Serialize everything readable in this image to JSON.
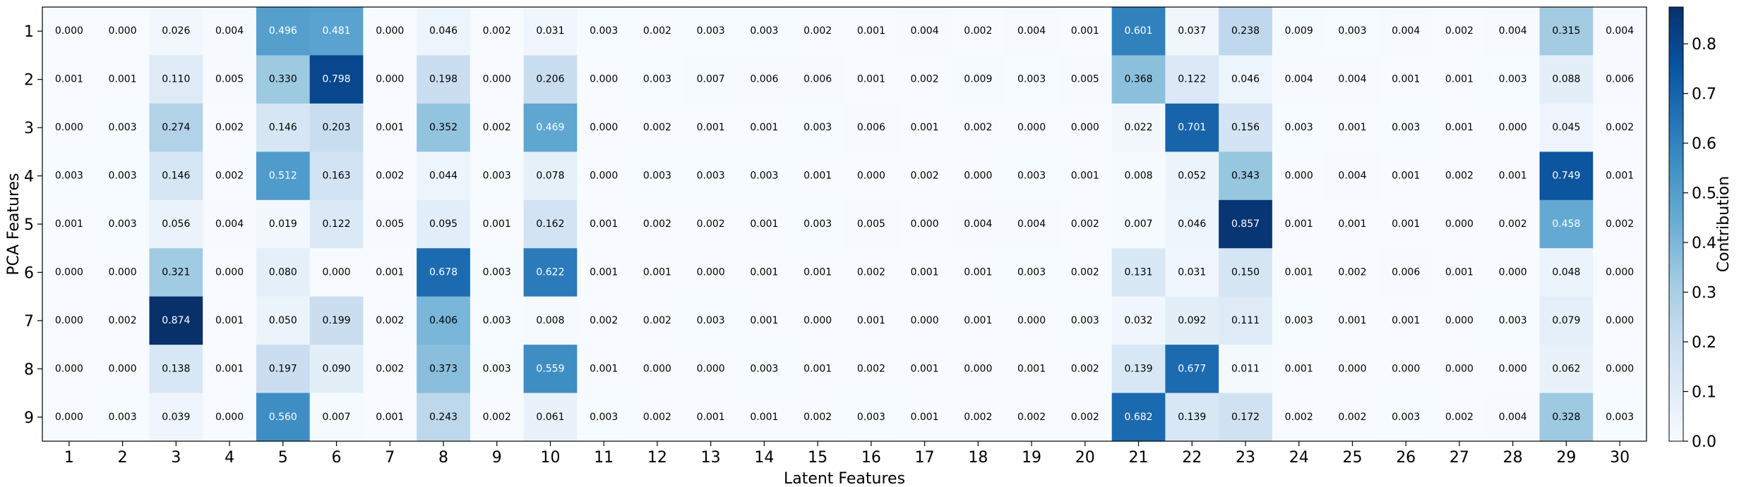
{
  "chart_data": {
    "type": "heatmap",
    "title": "",
    "xlabel": "Latent Features",
    "ylabel": "PCA Features",
    "x_categories": [
      "1",
      "2",
      "3",
      "4",
      "5",
      "6",
      "7",
      "8",
      "9",
      "10",
      "11",
      "12",
      "13",
      "14",
      "15",
      "16",
      "17",
      "18",
      "19",
      "20",
      "21",
      "22",
      "23",
      "24",
      "25",
      "26",
      "27",
      "28",
      "29",
      "30"
    ],
    "y_categories": [
      "1",
      "2",
      "3",
      "4",
      "5",
      "6",
      "7",
      "8",
      "9"
    ],
    "values": [
      [
        0.0,
        0.0,
        0.026,
        0.004,
        0.496,
        0.481,
        0.0,
        0.046,
        0.002,
        0.031,
        0.003,
        0.002,
        0.003,
        0.003,
        0.002,
        0.001,
        0.004,
        0.002,
        0.004,
        0.001,
        0.601,
        0.037,
        0.238,
        0.009,
        0.003,
        0.004,
        0.002,
        0.004,
        0.315,
        0.004
      ],
      [
        0.001,
        0.001,
        0.11,
        0.005,
        0.33,
        0.798,
        0.0,
        0.198,
        0.0,
        0.206,
        0.0,
        0.003,
        0.007,
        0.006,
        0.006,
        0.001,
        0.002,
        0.009,
        0.003,
        0.005,
        0.368,
        0.122,
        0.046,
        0.004,
        0.004,
        0.001,
        0.001,
        0.003,
        0.088,
        0.006
      ],
      [
        0.0,
        0.003,
        0.274,
        0.002,
        0.146,
        0.203,
        0.001,
        0.352,
        0.002,
        0.469,
        0.0,
        0.002,
        0.001,
        0.001,
        0.003,
        0.006,
        0.001,
        0.002,
        0.0,
        0.0,
        0.022,
        0.701,
        0.156,
        0.003,
        0.001,
        0.003,
        0.001,
        0.0,
        0.045,
        0.002
      ],
      [
        0.003,
        0.003,
        0.146,
        0.002,
        0.512,
        0.163,
        0.002,
        0.044,
        0.003,
        0.078,
        0.0,
        0.003,
        0.003,
        0.003,
        0.001,
        0.0,
        0.002,
        0.0,
        0.003,
        0.001,
        0.008,
        0.052,
        0.343,
        0.0,
        0.004,
        0.001,
        0.002,
        0.001,
        0.749,
        0.001
      ],
      [
        0.001,
        0.003,
        0.056,
        0.004,
        0.019,
        0.122,
        0.005,
        0.095,
        0.001,
        0.162,
        0.001,
        0.002,
        0.002,
        0.001,
        0.003,
        0.005,
        0.0,
        0.004,
        0.004,
        0.002,
        0.007,
        0.046,
        0.857,
        0.001,
        0.001,
        0.001,
        0.0,
        0.002,
        0.458,
        0.002
      ],
      [
        0.0,
        0.0,
        0.321,
        0.0,
        0.08,
        0.0,
        0.001,
        0.678,
        0.003,
        0.622,
        0.001,
        0.001,
        0.0,
        0.001,
        0.001,
        0.002,
        0.001,
        0.001,
        0.003,
        0.002,
        0.131,
        0.031,
        0.15,
        0.001,
        0.002,
        0.006,
        0.001,
        0.0,
        0.048,
        0.0
      ],
      [
        0.0,
        0.002,
        0.874,
        0.001,
        0.05,
        0.199,
        0.002,
        0.406,
        0.003,
        0.008,
        0.002,
        0.002,
        0.003,
        0.001,
        0.0,
        0.001,
        0.0,
        0.001,
        0.0,
        0.003,
        0.032,
        0.092,
        0.111,
        0.003,
        0.001,
        0.001,
        0.0,
        0.003,
        0.079,
        0.0
      ],
      [
        0.0,
        0.0,
        0.138,
        0.001,
        0.197,
        0.09,
        0.002,
        0.373,
        0.003,
        0.559,
        0.001,
        0.0,
        0.0,
        0.003,
        0.001,
        0.002,
        0.001,
        0.0,
        0.001,
        0.002,
        0.139,
        0.677,
        0.011,
        0.001,
        0.0,
        0.0,
        0.0,
        0.0,
        0.062,
        0.0
      ],
      [
        0.0,
        0.003,
        0.039,
        0.0,
        0.56,
        0.007,
        0.001,
        0.243,
        0.002,
        0.061,
        0.003,
        0.002,
        0.001,
        0.001,
        0.002,
        0.003,
        0.001,
        0.002,
        0.002,
        0.002,
        0.682,
        0.139,
        0.172,
        0.002,
        0.002,
        0.003,
        0.002,
        0.004,
        0.328,
        0.003
      ]
    ],
    "value_format": "3 decimals",
    "colormap": "Blues",
    "colorbar": {
      "label": "Contribution",
      "min": 0.0,
      "max": 0.874,
      "ticks": [
        0.0,
        0.1,
        0.2,
        0.3,
        0.4,
        0.5,
        0.6,
        0.7,
        0.8
      ],
      "tick_labels": [
        "0.0",
        "0.1",
        "0.2",
        "0.3",
        "0.4",
        "0.5",
        "0.6",
        "0.7",
        "0.8"
      ]
    },
    "grid": false,
    "legend": "none"
  }
}
